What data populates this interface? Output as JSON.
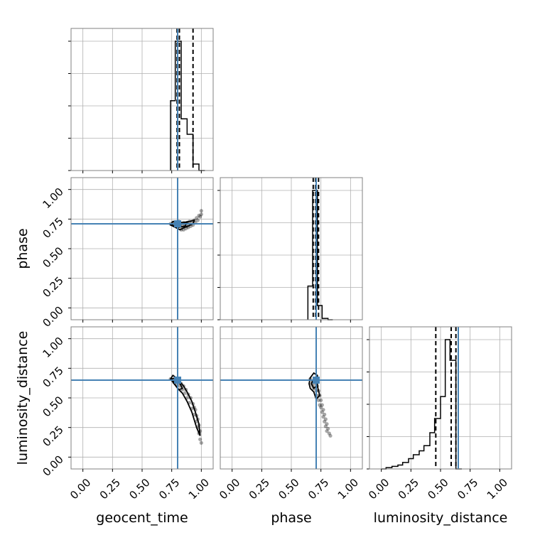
{
  "chart_data": {
    "type": "corner",
    "parameters": [
      "geocent_time",
      "phase",
      "luminosity_distance"
    ],
    "truths": {
      "geocent_time": 0.8,
      "phase": 0.71,
      "luminosity_distance": 0.65
    },
    "tick_labels": [
      "0.00",
      "0.25",
      "0.50",
      "0.75",
      "1.00"
    ],
    "range": [
      -0.1,
      1.1
    ],
    "grid": true,
    "colors": {
      "truth": "#4682b4",
      "hist": "#000000",
      "grid": "#b0b0b0",
      "frame": "#808080",
      "points": "#000000"
    },
    "histograms": [
      {
        "param": "geocent_time",
        "bin_edges": [
          0.74,
          0.78,
          0.83,
          0.88,
          0.93,
          0.98,
          1.03
        ],
        "counts": [
          0.54,
          1.0,
          0.4,
          0.28,
          0.05,
          0.0
        ],
        "quantiles": [
          0.795,
          0.815,
          0.93
        ]
      },
      {
        "param": "phase",
        "bin_edges": [
          0.64,
          0.68,
          0.72,
          0.76,
          0.81,
          0.85
        ],
        "counts": [
          0.26,
          1.0,
          0.11,
          0.01,
          0.0
        ],
        "quantiles": [
          0.685,
          0.705,
          0.73
        ]
      },
      {
        "param": "luminosity_distance",
        "bin_edges": [
          0.0,
          0.04,
          0.09,
          0.14,
          0.18,
          0.23,
          0.27,
          0.32,
          0.36,
          0.41,
          0.45,
          0.5,
          0.54,
          0.58,
          0.63,
          0.68
        ],
        "counts": [
          0.0,
          0.01,
          0.02,
          0.03,
          0.05,
          0.08,
          0.11,
          0.14,
          0.18,
          0.28,
          0.39,
          0.56,
          1.0,
          0.84,
          0.0
        ],
        "quantiles": [
          0.46,
          0.59,
          0.63
        ]
      }
    ],
    "scatter_panels": [
      {
        "x_param": "geocent_time",
        "y_param": "phase",
        "points": [
          [
            0.74,
            0.71
          ],
          [
            0.76,
            0.72
          ],
          [
            0.78,
            0.72
          ],
          [
            0.8,
            0.71
          ],
          [
            0.82,
            0.7
          ],
          [
            0.84,
            0.69
          ],
          [
            0.86,
            0.7
          ],
          [
            0.88,
            0.72
          ],
          [
            0.9,
            0.73
          ],
          [
            0.92,
            0.73
          ],
          [
            0.94,
            0.74
          ],
          [
            0.96,
            0.76
          ],
          [
            0.98,
            0.78
          ],
          [
            1.0,
            0.82
          ],
          [
            0.83,
            0.66
          ],
          [
            0.85,
            0.66
          ],
          [
            0.87,
            0.67
          ],
          [
            0.89,
            0.68
          ],
          [
            0.91,
            0.69
          ],
          [
            0.93,
            0.7
          ],
          [
            0.95,
            0.72
          ],
          [
            0.97,
            0.74
          ],
          [
            0.99,
            0.77
          ],
          [
            1.0,
            0.79
          ],
          [
            0.8,
            0.69
          ],
          [
            0.81,
            0.73
          ],
          [
            0.79,
            0.7
          ],
          [
            0.77,
            0.7
          ],
          [
            0.85,
            0.72
          ],
          [
            0.88,
            0.69
          ]
        ],
        "contours": [
          [
            [
              0.74,
              0.7
            ],
            [
              0.76,
              0.73
            ],
            [
              0.8,
              0.73
            ],
            [
              0.84,
              0.72
            ],
            [
              0.9,
              0.73
            ],
            [
              0.94,
              0.74
            ],
            [
              0.93,
              0.71
            ],
            [
              0.86,
              0.68
            ],
            [
              0.82,
              0.66
            ],
            [
              0.78,
              0.68
            ]
          ],
          [
            [
              0.75,
              0.7
            ],
            [
              0.79,
              0.72
            ],
            [
              0.84,
              0.71
            ],
            [
              0.88,
              0.72
            ],
            [
              0.86,
              0.69
            ],
            [
              0.81,
              0.68
            ],
            [
              0.77,
              0.69
            ]
          ]
        ]
      },
      {
        "x_param": "geocent_time",
        "y_param": "luminosity_distance",
        "points": [
          [
            0.74,
            0.66
          ],
          [
            0.76,
            0.65
          ],
          [
            0.78,
            0.64
          ],
          [
            0.8,
            0.62
          ],
          [
            0.82,
            0.6
          ],
          [
            0.84,
            0.57
          ],
          [
            0.86,
            0.54
          ],
          [
            0.88,
            0.5
          ],
          [
            0.9,
            0.46
          ],
          [
            0.92,
            0.41
          ],
          [
            0.94,
            0.36
          ],
          [
            0.96,
            0.3
          ],
          [
            0.97,
            0.25
          ],
          [
            0.98,
            0.2
          ],
          [
            0.99,
            0.15
          ],
          [
            1.0,
            0.12
          ],
          [
            0.95,
            0.4
          ],
          [
            0.93,
            0.45
          ],
          [
            0.91,
            0.5
          ],
          [
            0.89,
            0.53
          ],
          [
            0.87,
            0.57
          ],
          [
            0.85,
            0.6
          ],
          [
            0.97,
            0.32
          ],
          [
            0.99,
            0.22
          ],
          [
            0.96,
            0.35
          ],
          [
            0.94,
            0.42
          ],
          [
            0.98,
            0.27
          ],
          [
            0.8,
            0.66
          ],
          [
            0.77,
            0.63
          ],
          [
            0.83,
            0.62
          ]
        ],
        "contours": [
          [
            [
              0.74,
              0.66
            ],
            [
              0.76,
              0.69
            ],
            [
              0.8,
              0.66
            ],
            [
              0.85,
              0.6
            ],
            [
              0.88,
              0.55
            ],
            [
              0.92,
              0.47
            ],
            [
              0.95,
              0.38
            ],
            [
              0.98,
              0.28
            ],
            [
              0.99,
              0.18
            ],
            [
              0.96,
              0.25
            ],
            [
              0.92,
              0.38
            ],
            [
              0.88,
              0.47
            ],
            [
              0.84,
              0.54
            ],
            [
              0.8,
              0.58
            ],
            [
              0.77,
              0.62
            ]
          ],
          [
            [
              0.75,
              0.66
            ],
            [
              0.78,
              0.67
            ],
            [
              0.82,
              0.62
            ],
            [
              0.84,
              0.58
            ],
            [
              0.81,
              0.57
            ],
            [
              0.78,
              0.61
            ]
          ]
        ]
      },
      {
        "x_param": "phase",
        "y_param": "luminosity_distance",
        "points": [
          [
            0.66,
            0.66
          ],
          [
            0.68,
            0.64
          ],
          [
            0.7,
            0.62
          ],
          [
            0.72,
            0.6
          ],
          [
            0.73,
            0.56
          ],
          [
            0.74,
            0.52
          ],
          [
            0.75,
            0.48
          ],
          [
            0.76,
            0.44
          ],
          [
            0.77,
            0.4
          ],
          [
            0.78,
            0.36
          ],
          [
            0.79,
            0.32
          ],
          [
            0.8,
            0.28
          ],
          [
            0.81,
            0.24
          ],
          [
            0.82,
            0.2
          ],
          [
            0.74,
            0.44
          ],
          [
            0.73,
            0.48
          ],
          [
            0.72,
            0.52
          ],
          [
            0.76,
            0.38
          ],
          [
            0.78,
            0.3
          ],
          [
            0.8,
            0.22
          ],
          [
            0.71,
            0.56
          ],
          [
            0.69,
            0.58
          ],
          [
            0.67,
            0.62
          ],
          [
            0.75,
            0.42
          ],
          [
            0.77,
            0.34
          ],
          [
            0.79,
            0.26
          ],
          [
            0.83,
            0.18
          ],
          [
            0.7,
            0.66
          ],
          [
            0.72,
            0.64
          ],
          [
            0.68,
            0.6
          ]
        ],
        "contours": [
          [
            [
              0.65,
              0.62
            ],
            [
              0.66,
              0.67
            ],
            [
              0.69,
              0.71
            ],
            [
              0.72,
              0.69
            ],
            [
              0.72,
              0.6
            ],
            [
              0.74,
              0.52
            ],
            [
              0.71,
              0.49
            ],
            [
              0.69,
              0.55
            ],
            [
              0.66,
              0.58
            ]
          ],
          [
            [
              0.67,
              0.62
            ],
            [
              0.69,
              0.67
            ],
            [
              0.71,
              0.65
            ],
            [
              0.71,
              0.6
            ],
            [
              0.69,
              0.58
            ]
          ]
        ]
      }
    ]
  }
}
